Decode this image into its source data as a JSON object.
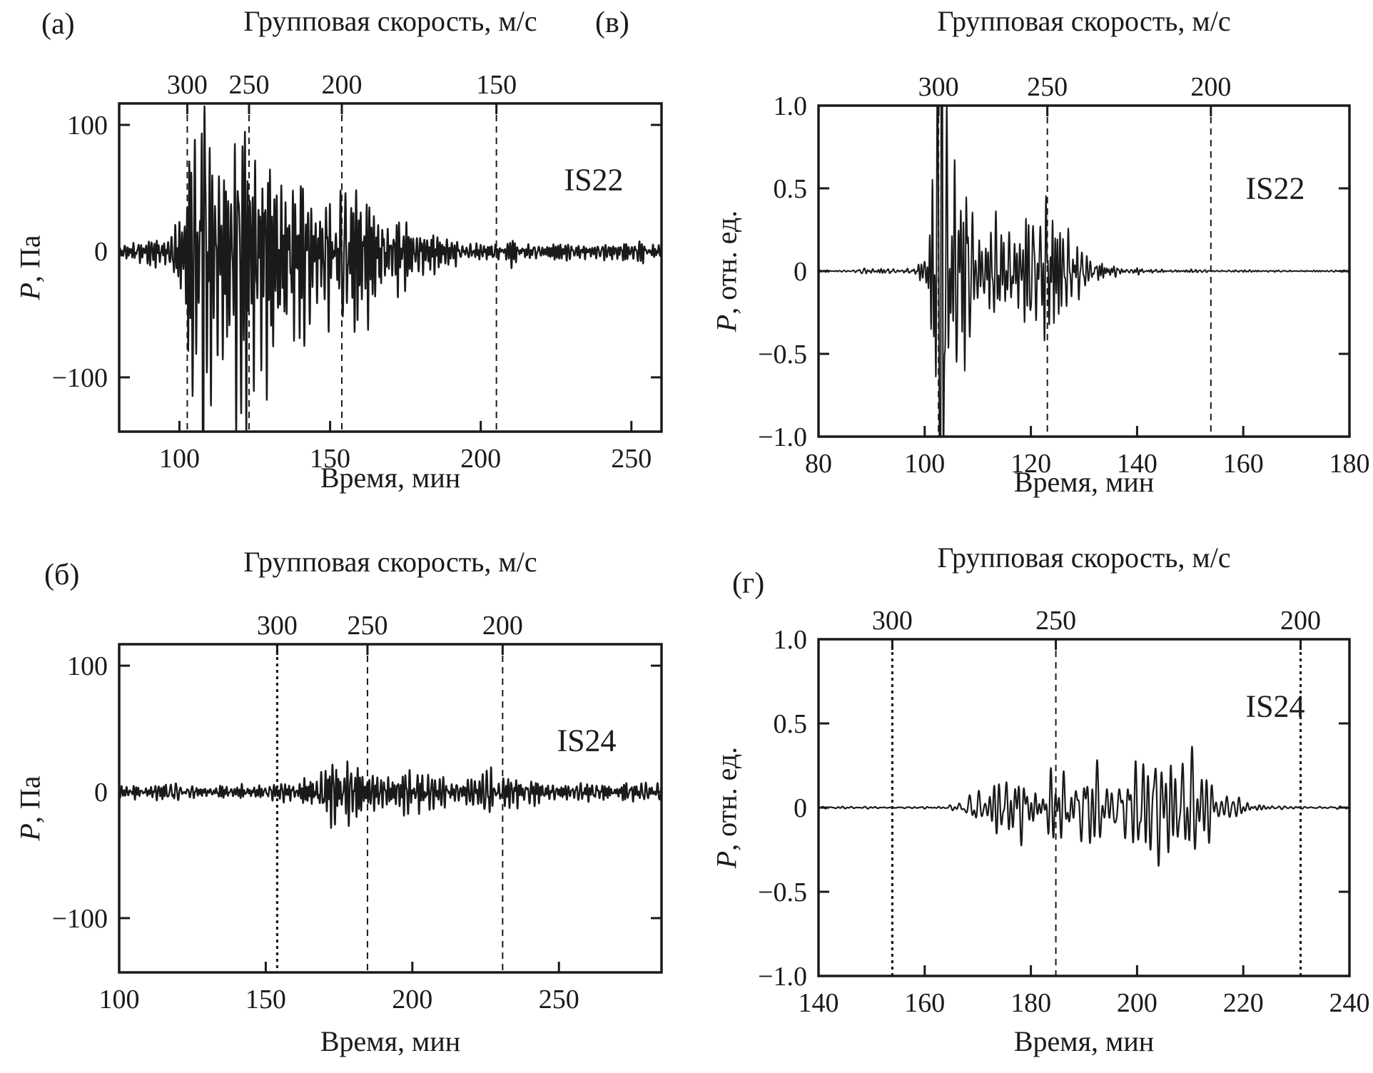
{
  "figure": {
    "background": "#ffffff",
    "ink": "#1a1a1a"
  },
  "chart_data": {
    "type": "line",
    "description_panels": [
      {
        "id": "a",
        "corner_label": "(а)",
        "top_axis_title": "Групповая скорость, м/с",
        "station": "IS22",
        "xlabel": "Время, мин",
        "ylabel_var": "P",
        "ylabel_rest": ", Па",
        "xlim": [
          80,
          260
        ],
        "xticks": [
          {
            "v": 100,
            "label": "100"
          },
          {
            "v": 150,
            "label": "150"
          },
          {
            "v": 200,
            "label": "200"
          },
          {
            "v": 250,
            "label": "250"
          }
        ],
        "ylim": [
          -143,
          117
        ],
        "yticks": [
          {
            "v": 100,
            "label": "100"
          },
          {
            "v": 0,
            "label": "0"
          },
          {
            "v": -100,
            "label": "−100"
          }
        ],
        "gv_marks": [
          {
            "label": "300",
            "t": 102.6,
            "bold": false
          },
          {
            "label": "250",
            "t": 123.1,
            "bold": false
          },
          {
            "label": "200",
            "t": 153.9,
            "bold": false
          },
          {
            "label": "150",
            "t": 205.2,
            "bold": false
          }
        ],
        "seed": 7,
        "freq_range": [
          0.45,
          1.7
        ],
        "envelope": [
          [
            80,
            7
          ],
          [
            86,
            8
          ],
          [
            89,
            13
          ],
          [
            92,
            9
          ],
          [
            95,
            10
          ],
          [
            97,
            18
          ],
          [
            99,
            30
          ],
          [
            101,
            55
          ],
          [
            102.5,
            95
          ],
          [
            104,
            120
          ],
          [
            106,
            95
          ],
          [
            108,
            130
          ],
          [
            110,
            105
          ],
          [
            112,
            140
          ],
          [
            114,
            125
          ],
          [
            116,
            135
          ],
          [
            118,
            110
          ],
          [
            120,
            125
          ],
          [
            122,
            130
          ],
          [
            124,
            120
          ],
          [
            126,
            100
          ],
          [
            128,
            88
          ],
          [
            130,
            80
          ],
          [
            133,
            70
          ],
          [
            136,
            62
          ],
          [
            139,
            55
          ],
          [
            142,
            58
          ],
          [
            145,
            52
          ],
          [
            149,
            48
          ],
          [
            152,
            50
          ],
          [
            155,
            55
          ],
          [
            158,
            48
          ],
          [
            161,
            40
          ],
          [
            164,
            45
          ],
          [
            167,
            38
          ],
          [
            170,
            32
          ],
          [
            173,
            30
          ],
          [
            176,
            26
          ],
          [
            179,
            20
          ],
          [
            182,
            16
          ],
          [
            185,
            13
          ],
          [
            188,
            10
          ],
          [
            192,
            8
          ],
          [
            196,
            7
          ],
          [
            205,
            7
          ],
          [
            215,
            6
          ],
          [
            230,
            6
          ],
          [
            245,
            6
          ],
          [
            260,
            6
          ]
        ]
      },
      {
        "id": "b",
        "corner_label": "(б)",
        "top_axis_title": "Групповая скорость, м/с",
        "station": "IS24",
        "xlabel": "Время, мин",
        "ylabel_var": "P",
        "ylabel_rest": ", Па",
        "xlim": [
          100,
          285
        ],
        "xticks": [
          {
            "v": 100,
            "label": "100"
          },
          {
            "v": 150,
            "label": "150"
          },
          {
            "v": 200,
            "label": "200"
          },
          {
            "v": 250,
            "label": "250"
          }
        ],
        "ylim": [
          -143,
          117
        ],
        "yticks": [
          {
            "v": 100,
            "label": "100"
          },
          {
            "v": 0,
            "label": "0"
          },
          {
            "v": -100,
            "label": "−100"
          }
        ],
        "gv_marks": [
          {
            "label": "300",
            "t": 153.9,
            "bold": true
          },
          {
            "label": "250",
            "t": 184.7,
            "bold": false
          },
          {
            "label": "200",
            "t": 230.8,
            "bold": false
          }
        ],
        "seed": 13,
        "freq_range": [
          0.4,
          1.5
        ],
        "envelope": [
          [
            100,
            5
          ],
          [
            108,
            5
          ],
          [
            112,
            6
          ],
          [
            116,
            7
          ],
          [
            120,
            6
          ],
          [
            126,
            5
          ],
          [
            132,
            4.5
          ],
          [
            138,
            5
          ],
          [
            144,
            5
          ],
          [
            150,
            5.5
          ],
          [
            155,
            6
          ],
          [
            160,
            7
          ],
          [
            164,
            9
          ],
          [
            167,
            12
          ],
          [
            170,
            17
          ],
          [
            173,
            24
          ],
          [
            175,
            30
          ],
          [
            177,
            34
          ],
          [
            179,
            30
          ],
          [
            181,
            26
          ],
          [
            183,
            20
          ],
          [
            186,
            15
          ],
          [
            189,
            13
          ],
          [
            193,
            12
          ],
          [
            197,
            14
          ],
          [
            201,
            15
          ],
          [
            205,
            14
          ],
          [
            209,
            12
          ],
          [
            213,
            11
          ],
          [
            217,
            13
          ],
          [
            221,
            15
          ],
          [
            224,
            13
          ],
          [
            228,
            11
          ],
          [
            232,
            10
          ],
          [
            236,
            9
          ],
          [
            241,
            9
          ],
          [
            246,
            8
          ],
          [
            252,
            8
          ],
          [
            258,
            7
          ],
          [
            264,
            7
          ],
          [
            270,
            6
          ],
          [
            277,
            6
          ],
          [
            285,
            5
          ]
        ]
      },
      {
        "id": "v",
        "corner_label": "(в)",
        "top_axis_title": "Групповая скорость, м/с",
        "station": "IS22",
        "xlabel": "Время, мин",
        "ylabel_var": "P",
        "ylabel_rest": ", отн. ед.",
        "xlim": [
          80,
          180
        ],
        "xticks": [
          {
            "v": 80,
            "label": "80"
          },
          {
            "v": 100,
            "label": "100"
          },
          {
            "v": 120,
            "label": "120"
          },
          {
            "v": 140,
            "label": "140"
          },
          {
            "v": 160,
            "label": "160"
          },
          {
            "v": 180,
            "label": "180"
          }
        ],
        "ylim": [
          -1,
          1
        ],
        "yticks": [
          {
            "v": 1,
            "label": "1.0"
          },
          {
            "v": 0.5,
            "label": "0.5"
          },
          {
            "v": 0,
            "label": "0"
          },
          {
            "v": -0.5,
            "label": "−0.5"
          },
          {
            "v": -1,
            "label": "−1.0"
          }
        ],
        "gv_marks": [
          {
            "label": "300",
            "t": 102.6,
            "bold": false
          },
          {
            "label": "250",
            "t": 123.1,
            "bold": false
          },
          {
            "label": "200",
            "t": 153.9,
            "bold": false
          }
        ],
        "seed": 5,
        "freq_range": [
          0.7,
          2.4
        ],
        "envelope": [
          [
            80,
            0.007
          ],
          [
            87,
            0.008
          ],
          [
            89,
            0.025
          ],
          [
            91,
            0.012
          ],
          [
            94,
            0.01
          ],
          [
            96,
            0.015
          ],
          [
            98,
            0.05
          ],
          [
            100,
            0.12
          ],
          [
            101,
            0.3
          ],
          [
            102,
            0.8
          ],
          [
            103,
            1.6
          ],
          [
            104,
            1.3
          ],
          [
            105,
            0.75
          ],
          [
            106,
            0.5
          ],
          [
            107,
            0.42
          ],
          [
            109,
            0.33
          ],
          [
            111,
            0.28
          ],
          [
            113,
            0.26
          ],
          [
            115,
            0.3
          ],
          [
            117,
            0.28
          ],
          [
            119,
            0.38
          ],
          [
            121,
            0.45
          ],
          [
            122.5,
            0.47
          ],
          [
            124,
            0.3
          ],
          [
            126,
            0.22
          ],
          [
            128,
            0.15
          ],
          [
            130,
            0.1
          ],
          [
            132,
            0.07
          ],
          [
            134,
            0.05
          ],
          [
            136,
            0.03
          ],
          [
            139,
            0.015
          ],
          [
            142,
            0.01
          ],
          [
            146,
            0.007
          ],
          [
            152,
            0.006
          ],
          [
            160,
            0.006
          ],
          [
            170,
            0.005
          ],
          [
            180,
            0.005
          ]
        ]
      },
      {
        "id": "g",
        "corner_label": "(г)",
        "top_axis_title": "Групповая скорость, м/с",
        "station": "IS24",
        "xlabel": "Время, мин",
        "ylabel_var": "P",
        "ylabel_rest": ", отн. ед.",
        "xlim": [
          140,
          240
        ],
        "xticks": [
          {
            "v": 140,
            "label": "140"
          },
          {
            "v": 160,
            "label": "160"
          },
          {
            "v": 180,
            "label": "180"
          },
          {
            "v": 200,
            "label": "200"
          },
          {
            "v": 220,
            "label": "220"
          },
          {
            "v": 240,
            "label": "240"
          }
        ],
        "ylim": [
          -1,
          1
        ],
        "yticks": [
          {
            "v": 1,
            "label": "1.0"
          },
          {
            "v": 0.5,
            "label": "0.5"
          },
          {
            "v": 0,
            "label": "0"
          },
          {
            "v": -0.5,
            "label": "−0.5"
          },
          {
            "v": -1,
            "label": "−1.0"
          }
        ],
        "gv_marks": [
          {
            "label": "300",
            "t": 153.9,
            "bold": true
          },
          {
            "label": "250",
            "t": 184.7,
            "bold": false
          },
          {
            "label": "200",
            "t": 230.8,
            "bold": true
          }
        ],
        "seed": 21,
        "freq_range": [
          0.45,
          1.4
        ],
        "envelope": [
          [
            140,
            0.006
          ],
          [
            158,
            0.006
          ],
          [
            163,
            0.008
          ],
          [
            166,
            0.02
          ],
          [
            168,
            0.05
          ],
          [
            170,
            0.09
          ],
          [
            172,
            0.13
          ],
          [
            174,
            0.15
          ],
          [
            176,
            0.17
          ],
          [
            178,
            0.14
          ],
          [
            180,
            0.16
          ],
          [
            182,
            0.18
          ],
          [
            184,
            0.15
          ],
          [
            186,
            0.17
          ],
          [
            188,
            0.19
          ],
          [
            190,
            0.16
          ],
          [
            192,
            0.21
          ],
          [
            194,
            0.23
          ],
          [
            196,
            0.19
          ],
          [
            198,
            0.22
          ],
          [
            200,
            0.26
          ],
          [
            202,
            0.24
          ],
          [
            204,
            0.3
          ],
          [
            206,
            0.36
          ],
          [
            207.5,
            0.42
          ],
          [
            209,
            0.32
          ],
          [
            211,
            0.24
          ],
          [
            213,
            0.18
          ],
          [
            215,
            0.12
          ],
          [
            217,
            0.08
          ],
          [
            219,
            0.05
          ],
          [
            221,
            0.03
          ],
          [
            223,
            0.015
          ],
          [
            226,
            0.008
          ],
          [
            232,
            0.006
          ],
          [
            240,
            0.006
          ]
        ]
      }
    ]
  }
}
